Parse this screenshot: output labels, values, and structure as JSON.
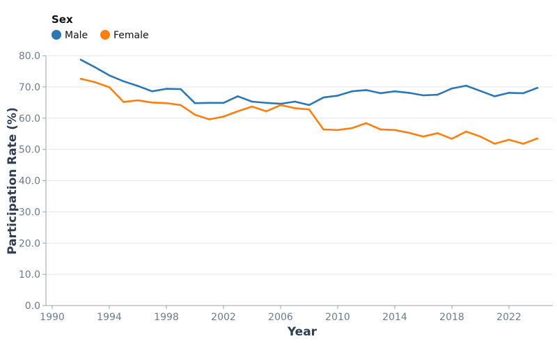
{
  "chart_data": {
    "type": "line",
    "xlabel": "Year",
    "ylabel": "Participation Rate (%)",
    "xlim": [
      1989.5,
      2025.5
    ],
    "ylim": [
      0,
      80
    ],
    "x_ticks": [
      1990,
      1994,
      1998,
      2002,
      2006,
      2010,
      2014,
      2018,
      2022
    ],
    "y_ticks": [
      "0.0",
      "10.0",
      "20.0",
      "30.0",
      "40.0",
      "50.0",
      "60.0",
      "70.0",
      "80.0"
    ],
    "grid": "horizontal",
    "legend": {
      "title": "Sex",
      "placement": "top-left"
    },
    "x": [
      1992,
      1993,
      1994,
      1995,
      1996,
      1997,
      1998,
      1999,
      2000,
      2001,
      2002,
      2003,
      2004,
      2005,
      2006,
      2007,
      2008,
      2009,
      2010,
      2011,
      2012,
      2013,
      2014,
      2015,
      2016,
      2017,
      2018,
      2019,
      2020,
      2021,
      2022,
      2023,
      2024
    ],
    "series": [
      {
        "name": "Male",
        "color": "#2a77b3",
        "values": [
          78.7,
          76.3,
          73.7,
          71.8,
          70.3,
          68.6,
          69.4,
          69.3,
          64.8,
          64.9,
          64.9,
          67.0,
          65.3,
          64.9,
          64.6,
          65.3,
          64.2,
          66.6,
          67.2,
          68.6,
          69.0,
          68.0,
          68.6,
          68.1,
          67.3,
          67.5,
          69.5,
          70.4,
          68.7,
          67.0,
          68.1,
          68.0,
          69.7
        ]
      },
      {
        "name": "Female",
        "color": "#ff7f0e",
        "values": [
          72.6,
          71.5,
          69.9,
          65.2,
          65.7,
          65.0,
          64.8,
          64.2,
          61.1,
          59.6,
          60.5,
          62.2,
          63.7,
          62.2,
          64.2,
          63.2,
          62.8,
          56.4,
          56.2,
          56.8,
          58.4,
          56.4,
          56.2,
          55.3,
          54.1,
          55.2,
          53.4,
          55.7,
          54.1,
          51.8,
          53.1,
          51.8,
          53.5
        ]
      }
    ]
  }
}
